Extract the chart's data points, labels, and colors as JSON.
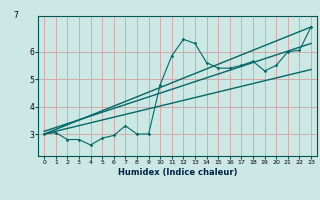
{
  "xlabel": "Humidex (Indice chaleur)",
  "bg_color": "#cce8e4",
  "grid_color": "#d4a0a0",
  "line_color": "#006868",
  "xlim": [
    -0.5,
    23.5
  ],
  "ylim": [
    2.2,
    7.3
  ],
  "yticks": [
    3,
    4,
    5,
    6
  ],
  "xticks": [
    0,
    1,
    2,
    3,
    4,
    5,
    6,
    7,
    8,
    9,
    10,
    11,
    12,
    13,
    14,
    15,
    16,
    17,
    18,
    19,
    20,
    21,
    22,
    23
  ],
  "xtick_labels": [
    "0",
    "1",
    "2",
    "3",
    "4",
    "5",
    "6",
    "7",
    "8",
    "9",
    "10",
    "11",
    "12",
    "13",
    "14",
    "15",
    "16",
    "17",
    "18",
    "19",
    "20",
    "21",
    "22",
    "23"
  ],
  "scatter_x": [
    0,
    1,
    2,
    3,
    4,
    5,
    6,
    7,
    8,
    9,
    10,
    11,
    12,
    13,
    14,
    15,
    16,
    17,
    18,
    19,
    20,
    21,
    22,
    23
  ],
  "scatter_y": [
    3.0,
    3.05,
    2.8,
    2.8,
    2.6,
    2.85,
    2.95,
    3.3,
    3.0,
    3.0,
    4.8,
    5.85,
    6.45,
    6.3,
    5.6,
    5.4,
    5.4,
    5.5,
    5.65,
    5.3,
    5.5,
    6.0,
    6.05,
    6.9
  ],
  "line1_x": [
    0,
    23
  ],
  "line1_y": [
    3.0,
    6.9
  ],
  "line2_x": [
    0,
    23
  ],
  "line2_y": [
    3.0,
    5.35
  ],
  "line3_x": [
    0,
    23
  ],
  "line3_y": [
    3.1,
    6.3
  ]
}
